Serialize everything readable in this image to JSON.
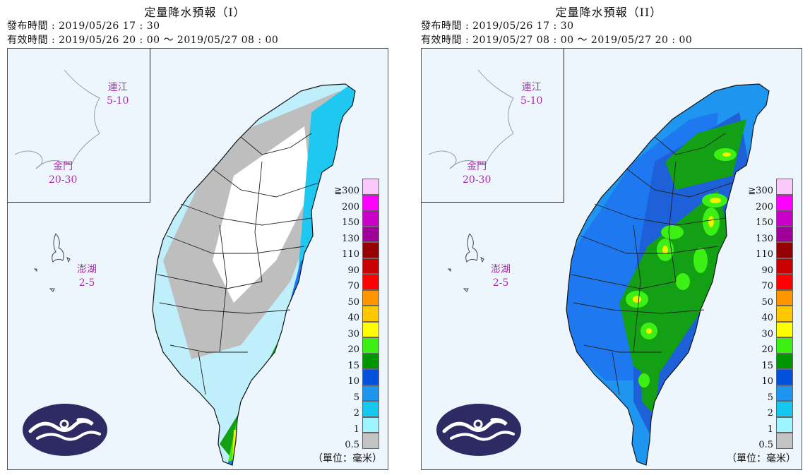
{
  "panels": [
    {
      "title": "定量降水預報（I）",
      "issue_label": "發布時間",
      "issue_time": "2019/05/26 17 : 30",
      "valid_label": "有效時間",
      "valid_start": "2019/05/26 20 : 00",
      "valid_end": "2019/05/27 08 : 00",
      "matsu": {
        "name": "連江",
        "range": "5-10"
      },
      "kinmen": {
        "name": "金門",
        "range": "20-30"
      },
      "penghu": {
        "name": "澎湖",
        "range": "2-5"
      },
      "dominant_colors": [
        "#eef6fd",
        "#bebebe",
        "#9ff3ff",
        "#1ec8f0",
        "#1e96f0",
        "#1e78f0",
        "#14a014",
        "#3cf014",
        "#f0f000"
      ]
    },
    {
      "title": "定量降水預報（II）",
      "issue_label": "發布時間",
      "issue_time": "2019/05/26 17 : 30",
      "valid_label": "有效時間",
      "valid_start": "2019/05/27 08 : 00",
      "valid_end": "2019/05/27 20 : 00",
      "matsu": {
        "name": "連江",
        "range": "5-10"
      },
      "kinmen": {
        "name": "金門",
        "range": "20-30"
      },
      "penghu": {
        "name": "澎湖",
        "range": "2-5"
      },
      "dominant_colors": [
        "#eef6fd",
        "#1e96f0",
        "#1e78f0",
        "#1e60d8",
        "#14a014",
        "#3cf014",
        "#f0f000"
      ]
    }
  ],
  "legend": {
    "unit": "（單位：毫米）",
    "levels": [
      {
        "label": "≧300",
        "color": "#fbc8fb"
      },
      {
        "label": "200",
        "color": "#ff00ff"
      },
      {
        "label": "150",
        "color": "#c800c8"
      },
      {
        "label": "130",
        "color": "#a0009a"
      },
      {
        "label": "110",
        "color": "#960000"
      },
      {
        "label": "90",
        "color": "#c80000"
      },
      {
        "label": "70",
        "color": "#ff0000"
      },
      {
        "label": "50",
        "color": "#ff9600"
      },
      {
        "label": "40",
        "color": "#ffc800"
      },
      {
        "label": "30",
        "color": "#ffff00"
      },
      {
        "label": "20",
        "color": "#3cf014"
      },
      {
        "label": "15",
        "color": "#009600"
      },
      {
        "label": "10",
        "color": "#0050dc"
      },
      {
        "label": "5",
        "color": "#1e96f0"
      },
      {
        "label": "2",
        "color": "#14c8f0"
      },
      {
        "label": "1",
        "color": "#9ef5ff"
      },
      {
        "label": "0.5",
        "color": "#c3c3c3"
      }
    ]
  },
  "logo": {
    "name": "central-weather-bureau-logo",
    "color": "#2e2a63"
  }
}
